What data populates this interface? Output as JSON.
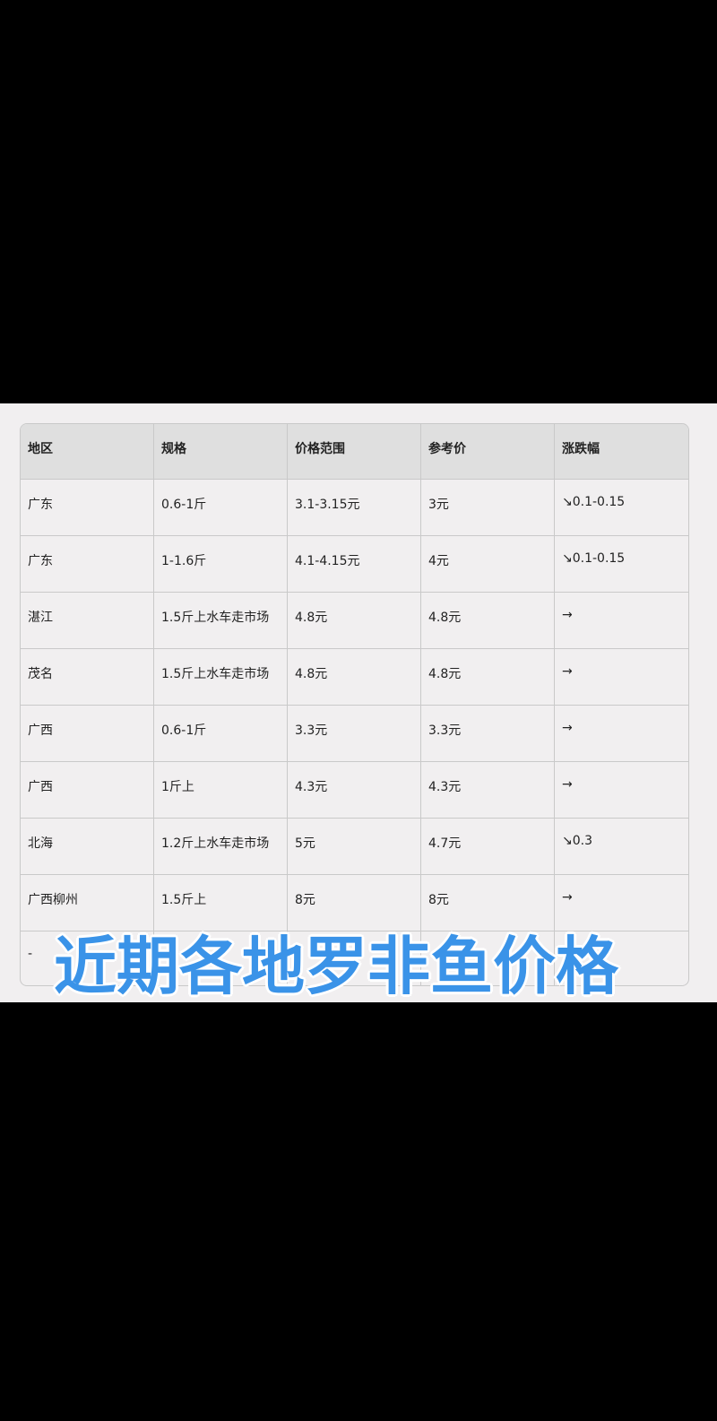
{
  "table": {
    "headers": [
      "地区",
      "规格",
      "价格范围",
      "参考价",
      "涨跌幅"
    ],
    "rows": [
      [
        "广东",
        "0.6-1斤",
        "3.1-3.15元",
        "3元",
        "↘0.1-0.15"
      ],
      [
        "广东",
        "1-1.6斤",
        "4.1-4.15元",
        "4元",
        "↘0.1-0.15"
      ],
      [
        "湛江",
        "1.5斤上水车走市场",
        "4.8元",
        "4.8元",
        "→"
      ],
      [
        "茂名",
        "1.5斤上水车走市场",
        "4.8元",
        "4.8元",
        "→"
      ],
      [
        "广西",
        "0.6-1斤",
        "3.3元",
        "3.3元",
        "→"
      ],
      [
        "广西",
        "1斤上",
        "4.3元",
        "4.3元",
        "→"
      ],
      [
        "北海",
        "1.2斤上水车走市场",
        "5元",
        "4.7元",
        "↘0.3"
      ],
      [
        "广西柳州",
        "1.5斤上",
        "8元",
        "8元",
        "→"
      ],
      [
        "-",
        "",
        "",
        "",
        ""
      ]
    ]
  },
  "overlay_title": "近期各地罗非鱼价格",
  "colors": {
    "overlay_text": "#3a93e8",
    "panel": "#f1eff0",
    "header": "#dfdfdf"
  }
}
